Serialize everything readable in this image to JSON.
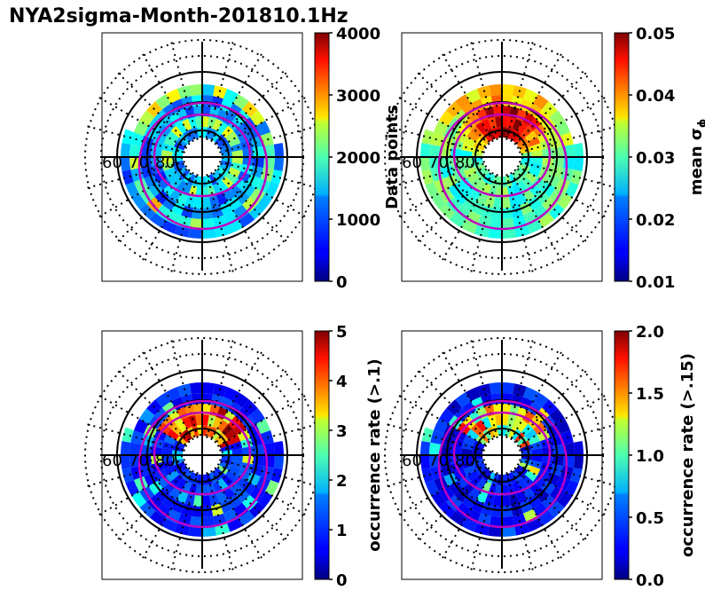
{
  "title": "NYA2sigma-Month-201810.1Hz",
  "colors": {
    "boundary": "#c000c0",
    "grid": "#000000"
  },
  "chart_data": [
    {
      "type": "heatmap",
      "projection": "polar",
      "latitude_labels": [
        "60",
        "70",
        "80"
      ],
      "colorbar": {
        "label": "Data points",
        "range": [
          0,
          4000
        ],
        "ticks": [
          "0",
          "1000",
          "2000",
          "3000",
          "4000"
        ]
      }
    },
    {
      "type": "heatmap",
      "projection": "polar",
      "latitude_labels": [
        "60",
        "70",
        "80"
      ],
      "colorbar": {
        "label": "mean σ",
        "label_sub": "ϕ",
        "range": [
          0.01,
          0.05
        ],
        "ticks": [
          "0.01",
          "0.02",
          "0.03",
          "0.04",
          "0.05"
        ]
      }
    },
    {
      "type": "heatmap",
      "projection": "polar",
      "latitude_labels": [
        "60",
        "70",
        "80"
      ],
      "colorbar": {
        "label": "occurrence rate (>.1)",
        "range": [
          0,
          5
        ],
        "ticks": [
          "0",
          "1",
          "2",
          "3",
          "4",
          "5"
        ]
      }
    },
    {
      "type": "heatmap",
      "projection": "polar",
      "latitude_labels": [
        "60",
        "70",
        "80"
      ],
      "colorbar": {
        "label": "occurrence rate (>.15)",
        "range": [
          0,
          2
        ],
        "ticks": [
          "0.0",
          "0.5",
          "1.0",
          "1.5",
          "2.0"
        ]
      }
    }
  ]
}
